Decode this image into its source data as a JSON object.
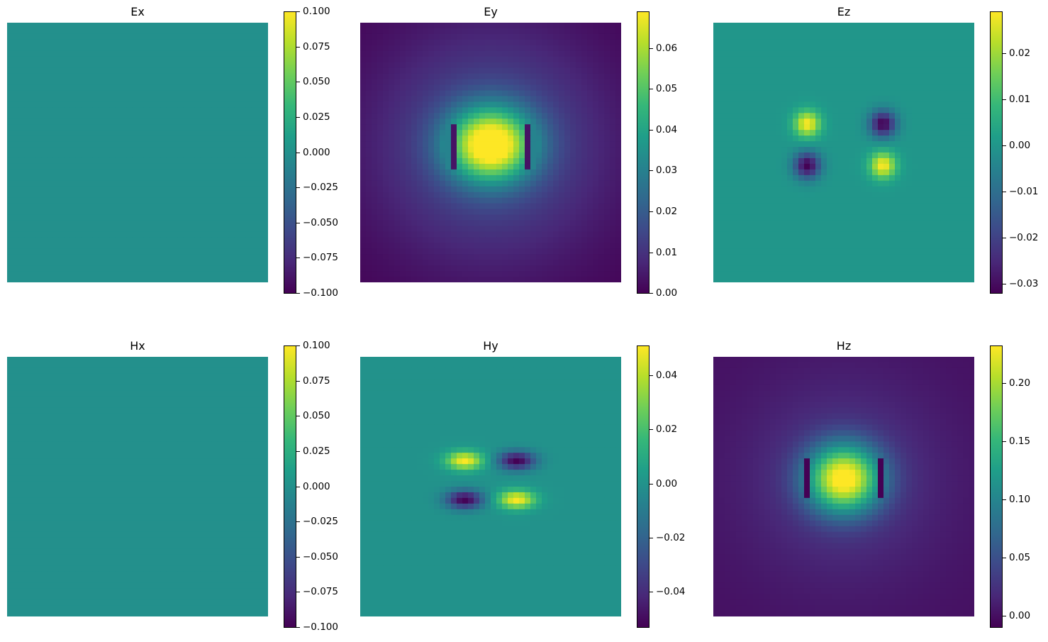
{
  "chart_data": [
    {
      "type": "heatmap",
      "title": "Ex",
      "colormap": "viridis",
      "colorbar": {
        "min": -0.1,
        "max": 0.1,
        "ticks": [
          0.1,
          0.075,
          0.05,
          0.025,
          0.0,
          -0.025,
          -0.05,
          -0.075,
          -0.1
        ],
        "tick_labels": [
          "0.100",
          "0.075",
          "0.050",
          "0.025",
          "0.000",
          "−0.025",
          "−0.050",
          "−0.075",
          "−0.100"
        ]
      },
      "field": {
        "kind": "uniform",
        "value": 0.0
      }
    },
    {
      "type": "heatmap",
      "title": "Ey",
      "colormap": "viridis",
      "colorbar": {
        "min": 0.0,
        "max": 0.069,
        "ticks": [
          0.06,
          0.05,
          0.04,
          0.03,
          0.02,
          0.01,
          0.0
        ],
        "tick_labels": [
          "0.06",
          "0.05",
          "0.04",
          "0.03",
          "0.02",
          "0.01",
          "0.00"
        ]
      },
      "field": {
        "kind": "central-lobe",
        "value": 0.069,
        "features": "two vertical strips on either side of a central bright lobe"
      }
    },
    {
      "type": "heatmap",
      "title": "Ez",
      "colormap": "viridis",
      "colorbar": {
        "min": -0.032,
        "max": 0.029,
        "ticks": [
          0.02,
          0.01,
          0.0,
          -0.01,
          -0.02,
          -0.03
        ],
        "tick_labels": [
          "0.02",
          "0.01",
          "0.00",
          "−0.01",
          "−0.02",
          "−0.03"
        ]
      },
      "field": {
        "kind": "corner-dipoles",
        "value": 0.0,
        "features": "four localized extrema at the corners of two horizontal slabs"
      }
    },
    {
      "type": "heatmap",
      "title": "Hx",
      "colormap": "viridis",
      "colorbar": {
        "min": -0.1,
        "max": 0.1,
        "ticks": [
          0.1,
          0.075,
          0.05,
          0.025,
          0.0,
          -0.025,
          -0.05,
          -0.075,
          -0.1
        ],
        "tick_labels": [
          "0.100",
          "0.075",
          "0.050",
          "0.025",
          "0.000",
          "−0.025",
          "−0.050",
          "−0.075",
          "−0.100"
        ]
      },
      "field": {
        "kind": "uniform",
        "value": 0.0
      }
    },
    {
      "type": "heatmap",
      "title": "Hy",
      "colormap": "viridis",
      "colorbar": {
        "min": -0.053,
        "max": 0.051,
        "ticks": [
          0.04,
          0.02,
          0.0,
          -0.02,
          -0.04
        ],
        "tick_labels": [
          "0.04",
          "0.02",
          "0.00",
          "−0.02",
          "−0.04"
        ]
      },
      "field": {
        "kind": "quadrupole",
        "value": 0.0,
        "features": "positive lobes upper-left and lower-right, negative lobes upper-right and lower-left"
      }
    },
    {
      "type": "heatmap",
      "title": "Hz",
      "colormap": "viridis",
      "colorbar": {
        "min": -0.01,
        "max": 0.232,
        "ticks": [
          0.2,
          0.15,
          0.1,
          0.05,
          0.0
        ],
        "tick_labels": [
          "0.20",
          "0.15",
          "0.10",
          "0.05",
          "0.00"
        ]
      },
      "field": {
        "kind": "central-lobe",
        "value": 0.232,
        "features": "bright central lobe with darker vertical edges"
      }
    }
  ]
}
